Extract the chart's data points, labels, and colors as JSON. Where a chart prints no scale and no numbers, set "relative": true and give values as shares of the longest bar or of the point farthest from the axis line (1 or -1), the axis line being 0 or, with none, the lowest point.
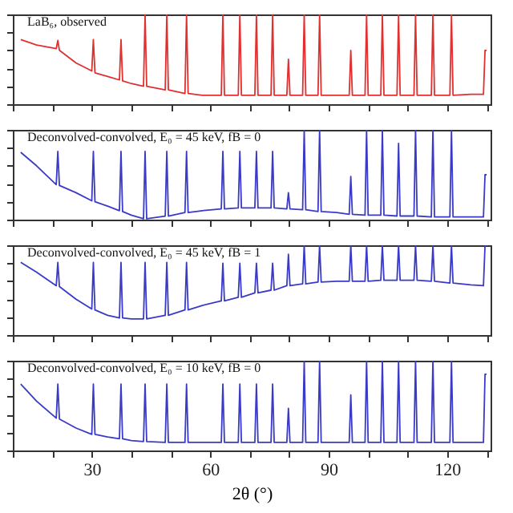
{
  "chart_data": [
    {
      "type": "line",
      "relative": true,
      "tick_labels": false,
      "grid": false,
      "annotations": [
        "LaB₆, observed"
      ],
      "xlim": [
        10,
        131
      ],
      "xticks": [
        {
          "value": 10,
          "label": null
        },
        {
          "value": 20,
          "label": null
        },
        30,
        {
          "value": 40,
          "label": null
        },
        {
          "value": 50,
          "label": null
        },
        60,
        {
          "value": 70,
          "label": null
        },
        {
          "value": 80,
          "label": null
        },
        90,
        {
          "value": 100,
          "label": null
        },
        {
          "value": 110,
          "label": null
        },
        120,
        {
          "value": 130,
          "label": null
        }
      ],
      "x": [
        12,
        16,
        21.0,
        21.4,
        21.8,
        26,
        30.0,
        30.4,
        30.8,
        34,
        37.0,
        37.4,
        37.8,
        40,
        43.1,
        43.5,
        43.9,
        48.6,
        49.0,
        49.4,
        53.6,
        54.0,
        54.4,
        58,
        62.8,
        63.2,
        63.6,
        67.1,
        67.5,
        67.9,
        71.3,
        71.7,
        72.1,
        75.4,
        75.8,
        76.2,
        79.4,
        79.8,
        80.2,
        83.4,
        83.8,
        84.2,
        87.3,
        87.7,
        88.1,
        92,
        95.2,
        95.6,
        96.0,
        99.2,
        99.6,
        100.0,
        103.2,
        103.6,
        104.0,
        107.3,
        107.7,
        108.1,
        111.6,
        112.0,
        112.4,
        116.0,
        116.4,
        116.8,
        120.7,
        121.1,
        121.5,
        126,
        129.2,
        129.6,
        130
      ],
      "series": [
        {
          "color": "#e03030",
          "values": [
            0.72,
            0.66,
            0.62,
            0.71,
            0.6,
            0.46,
            0.37,
            0.72,
            0.35,
            0.31,
            0.27,
            0.72,
            0.26,
            0.23,
            0.2,
            1,
            0.2,
            0.16,
            1,
            0.16,
            0.12,
            1,
            0.12,
            0.1,
            0.1,
            1,
            0.1,
            0.1,
            1,
            0.1,
            0.1,
            1,
            0.1,
            0.1,
            1,
            0.1,
            0.1,
            0.5,
            0.1,
            0.1,
            1,
            0.1,
            0.1,
            1,
            0.1,
            0.1,
            0.1,
            0.6,
            0.1,
            0.1,
            1,
            0.1,
            0.1,
            1,
            0.1,
            0.1,
            1,
            0.1,
            0.1,
            1,
            0.1,
            0.1,
            1,
            0.1,
            0.1,
            1,
            0.1,
            0.11,
            0.11,
            0.6,
            0.6
          ]
        }
      ]
    },
    {
      "type": "line",
      "relative": true,
      "tick_labels": false,
      "grid": false,
      "annotations": [
        "Deconvolved-convolved, E₀ = 45 keV, fB = 0"
      ],
      "xlim": [
        10,
        131
      ],
      "xticks": [
        {
          "value": 10,
          "label": null
        },
        {
          "value": 20,
          "label": null
        },
        30,
        {
          "value": 40,
          "label": null
        },
        {
          "value": 50,
          "label": null
        },
        60,
        {
          "value": 70,
          "label": null
        },
        {
          "value": 80,
          "label": null
        },
        90,
        {
          "value": 100,
          "label": null
        },
        {
          "value": 110,
          "label": null
        },
        120,
        {
          "value": 130,
          "label": null
        }
      ],
      "x": [
        12,
        16,
        21.0,
        21.4,
        21.8,
        26,
        30.0,
        30.4,
        30.8,
        34,
        37.0,
        37.4,
        37.8,
        40,
        43.1,
        43.5,
        43.9,
        48.6,
        49.0,
        49.4,
        53.6,
        54.0,
        54.4,
        58,
        62.8,
        63.2,
        63.6,
        67.1,
        67.5,
        67.9,
        71.3,
        71.7,
        72.1,
        75.4,
        75.8,
        76.2,
        79.4,
        79.8,
        80.2,
        83.4,
        83.8,
        84.2,
        87.3,
        87.7,
        88.1,
        92,
        95.2,
        95.6,
        96.0,
        99.2,
        99.6,
        100.0,
        103.2,
        103.6,
        104.0,
        107.3,
        107.7,
        108.1,
        111.6,
        112.0,
        112.4,
        116.0,
        116.4,
        116.8,
        120.7,
        121.1,
        121.5,
        126,
        129.2,
        129.6,
        130
      ],
      "series": [
        {
          "color": "#3a3ac8",
          "values": [
            0.75,
            0.6,
            0.39,
            0.76,
            0.38,
            0.3,
            0.21,
            0.76,
            0.2,
            0.15,
            0.1,
            0.76,
            0.09,
            0.05,
            0.01,
            0.76,
            0.01,
            0.04,
            0.76,
            0.04,
            0.08,
            0.76,
            0.08,
            0.1,
            0.12,
            0.76,
            0.12,
            0.13,
            0.76,
            0.13,
            0.13,
            0.76,
            0.13,
            0.13,
            0.76,
            0.13,
            0.12,
            0.3,
            0.12,
            0.11,
            1,
            0.11,
            0.09,
            1,
            0.09,
            0.08,
            0.06,
            0.48,
            0.06,
            0.05,
            1,
            0.05,
            0.05,
            1,
            0.05,
            0.04,
            0.85,
            0.04,
            0.04,
            1,
            0.04,
            0.03,
            1,
            0.03,
            0.03,
            1,
            0.03,
            0.03,
            0.03,
            0.5,
            0.5
          ]
        }
      ]
    },
    {
      "type": "line",
      "relative": true,
      "tick_labels": false,
      "grid": false,
      "annotations": [
        "Deconvolved-convolved, E₀ = 45 keV, fB = 1"
      ],
      "xlim": [
        10,
        131
      ],
      "xticks": [
        {
          "value": 10,
          "label": null
        },
        {
          "value": 20,
          "label": null
        },
        30,
        {
          "value": 40,
          "label": null
        },
        {
          "value": 50,
          "label": null
        },
        60,
        {
          "value": 70,
          "label": null
        },
        {
          "value": 80,
          "label": null
        },
        90,
        {
          "value": 100,
          "label": null
        },
        {
          "value": 110,
          "label": null
        },
        120,
        {
          "value": 130,
          "label": null
        }
      ],
      "x": [
        12,
        16,
        21.0,
        21.4,
        21.8,
        26,
        30.0,
        30.4,
        30.8,
        34,
        37.0,
        37.4,
        37.8,
        40,
        43.1,
        43.5,
        43.9,
        48.6,
        49.0,
        49.4,
        53.6,
        54.0,
        54.4,
        58,
        62.8,
        63.2,
        63.6,
        67.1,
        67.5,
        67.9,
        71.3,
        71.7,
        72.1,
        75.4,
        75.8,
        76.2,
        79.4,
        79.8,
        80.2,
        83.4,
        83.8,
        84.2,
        87.3,
        87.7,
        88.1,
        92,
        95.2,
        95.6,
        96.0,
        99.2,
        99.6,
        100.0,
        103.2,
        103.6,
        104.0,
        107.3,
        107.7,
        108.1,
        111.6,
        112.0,
        112.4,
        116.0,
        116.4,
        116.8,
        120.7,
        121.1,
        121.5,
        126,
        129.2,
        129.6,
        130
      ],
      "series": [
        {
          "color": "#3a3ac8",
          "values": [
            0.81,
            0.7,
            0.55,
            0.81,
            0.54,
            0.4,
            0.29,
            0.81,
            0.28,
            0.22,
            0.19,
            0.81,
            0.19,
            0.18,
            0.18,
            0.81,
            0.18,
            0.22,
            0.81,
            0.22,
            0.28,
            0.81,
            0.28,
            0.33,
            0.38,
            0.8,
            0.38,
            0.42,
            0.8,
            0.42,
            0.47,
            0.8,
            0.47,
            0.5,
            0.8,
            0.5,
            0.55,
            0.9,
            0.55,
            0.57,
            1,
            0.57,
            0.59,
            1,
            0.59,
            0.6,
            0.6,
            1,
            0.6,
            0.6,
            1,
            0.6,
            0.61,
            1,
            0.61,
            0.61,
            1,
            0.61,
            0.61,
            1,
            0.61,
            0.6,
            1,
            0.6,
            0.58,
            1,
            0.58,
            0.56,
            0.55,
            1,
            1
          ]
        }
      ]
    },
    {
      "type": "line",
      "relative": true,
      "tick_labels": "x",
      "grid": false,
      "xlabel": "2θ (°)",
      "annotations": [
        "Deconvolved-convolved, E₀ = 10 keV, fB = 0"
      ],
      "xlim": [
        10,
        131
      ],
      "xticks": [
        {
          "value": 10,
          "label": null
        },
        {
          "value": 20,
          "label": null
        },
        30,
        {
          "value": 40,
          "label": null
        },
        {
          "value": 50,
          "label": null
        },
        60,
        {
          "value": 70,
          "label": null
        },
        {
          "value": 80,
          "label": null
        },
        90,
        {
          "value": 100,
          "label": null
        },
        {
          "value": 110,
          "label": null
        },
        120,
        {
          "value": 130,
          "label": null
        }
      ],
      "x": [
        12,
        16,
        21.0,
        21.4,
        21.8,
        26,
        30.0,
        30.4,
        30.8,
        34,
        37.0,
        37.4,
        37.8,
        40,
        43.1,
        43.5,
        43.9,
        48.6,
        49.0,
        49.4,
        53.6,
        54.0,
        54.4,
        58,
        62.8,
        63.2,
        63.6,
        67.1,
        67.5,
        67.9,
        71.3,
        71.7,
        72.1,
        75.4,
        75.8,
        76.2,
        79.4,
        79.8,
        80.2,
        83.4,
        83.8,
        84.2,
        87.3,
        87.7,
        88.1,
        92,
        95.2,
        95.6,
        96.0,
        99.2,
        99.6,
        100.0,
        103.2,
        103.6,
        104.0,
        107.3,
        107.7,
        108.1,
        111.6,
        112.0,
        112.4,
        116.0,
        116.4,
        116.8,
        120.7,
        121.1,
        121.5,
        126,
        129.2,
        129.6,
        130
      ],
      "series": [
        {
          "color": "#3a3ac8",
          "values": [
            0.74,
            0.55,
            0.36,
            0.74,
            0.35,
            0.25,
            0.18,
            0.74,
            0.18,
            0.15,
            0.13,
            0.74,
            0.13,
            0.11,
            0.1,
            0.74,
            0.1,
            0.09,
            0.74,
            0.09,
            0.09,
            0.74,
            0.09,
            0.09,
            0.09,
            0.74,
            0.09,
            0.09,
            0.74,
            0.09,
            0.09,
            0.74,
            0.09,
            0.09,
            0.74,
            0.09,
            0.09,
            0.47,
            0.09,
            0.09,
            1,
            0.09,
            0.09,
            1,
            0.09,
            0.09,
            0.09,
            0.62,
            0.09,
            0.09,
            1,
            0.09,
            0.09,
            1,
            0.09,
            0.09,
            1,
            0.09,
            0.09,
            1,
            0.09,
            0.09,
            1,
            0.09,
            0.09,
            1,
            0.09,
            0.09,
            0.09,
            0.85,
            0.85
          ]
        }
      ]
    }
  ]
}
